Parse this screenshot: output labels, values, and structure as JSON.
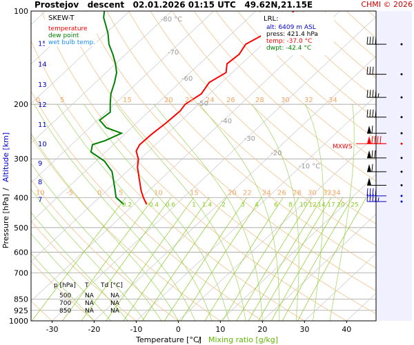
{
  "header": {
    "station": "Prostejov",
    "kind": "descent",
    "datetime": "02.01.2026 01:15 UTC",
    "position": "49.62N,21.15E",
    "copyright": "CHMI © 2026"
  },
  "legend": {
    "title": "SKEW-T",
    "items": [
      {
        "label": "temperature",
        "color": "#ff0000"
      },
      {
        "label": "dew point",
        "color": "#008000"
      },
      {
        "label": "wet bulb temp.",
        "color": "#1e90ff"
      }
    ]
  },
  "lrl": {
    "title": "LRL:",
    "alt": "alt: 6409 m ASL",
    "press": "press: 421.4 hPa",
    "temp": "temp: -37.0 °C",
    "dwpt": "dwpt: -42.4 °C"
  },
  "mxws_label": "MXWS",
  "axes": {
    "xlabel": "Temperature [°C]",
    "xlabel_sep": "/",
    "xlabel_mix": "Mixing ratio [g/kg]",
    "ylabel_pressure": "Pressure [hPa]",
    "ylabel_sep": "/",
    "ylabel_alt": "Altitude [km]",
    "xlim": [
      -35,
      47
    ],
    "ylim": [
      1000,
      100
    ],
    "pressure_ticks": [
      100,
      200,
      300,
      400,
      500,
      600,
      700,
      850,
      925,
      1000
    ],
    "temp_ticks": [
      -30,
      -20,
      -10,
      0,
      10,
      20,
      30,
      40
    ],
    "altitude_ticks": [
      {
        "km": "15",
        "p": 127
      },
      {
        "km": "14",
        "p": 148
      },
      {
        "km": "13",
        "p": 172
      },
      {
        "km": "12",
        "p": 200
      },
      {
        "km": "11",
        "p": 232
      },
      {
        "km": "10",
        "p": 268
      },
      {
        "km": "9",
        "p": 309
      },
      {
        "km": "8",
        "p": 355
      },
      {
        "km": "7",
        "p": 405
      }
    ]
  },
  "surface_table": {
    "headers": [
      "p [hPa]",
      "T",
      "Td [°C]"
    ],
    "rows": [
      [
        "500",
        "NA",
        "NA"
      ],
      [
        "700",
        "NA",
        "NA"
      ],
      [
        "850",
        "NA",
        "NA"
      ]
    ]
  },
  "chart_data": {
    "type": "line",
    "title": "SKEW-T",
    "xlabel": "Temperature [°C] / Mixing ratio [g/kg]",
    "ylabel": "Pressure [hPa] / Altitude [km]",
    "log_scale_y": true,
    "grid": true,
    "series": [
      {
        "name": "temperature",
        "color": "#ff0000",
        "points": [
          [
            421,
            -37.0
          ],
          [
            400,
            -39.5
          ],
          [
            380,
            -41.8
          ],
          [
            350,
            -45.0
          ],
          [
            320,
            -48.5
          ],
          [
            300,
            -50.5
          ],
          [
            283,
            -53.0
          ],
          [
            270,
            -53.8
          ],
          [
            250,
            -53.6
          ],
          [
            230,
            -53.0
          ],
          [
            210,
            -52.7
          ],
          [
            200,
            -53.2
          ],
          [
            185,
            -52.0
          ],
          [
            170,
            -53.0
          ],
          [
            158,
            -51.5
          ],
          [
            148,
            -53.5
          ],
          [
            138,
            -53.0
          ],
          [
            128,
            -54.0
          ],
          [
            118,
            -52.0
          ],
          [
            110,
            -51.5
          ],
          [
            105,
            -50.5
          ],
          [
            100,
            -51.0
          ]
        ]
      },
      {
        "name": "dew point",
        "color": "#008000",
        "points": [
          [
            421,
            -42.4
          ],
          [
            400,
            -46.0
          ],
          [
            370,
            -49.0
          ],
          [
            330,
            -53.5
          ],
          [
            305,
            -58.0
          ],
          [
            285,
            -63.5
          ],
          [
            270,
            -65.0
          ],
          [
            262,
            -63.0
          ],
          [
            248,
            -61.0
          ],
          [
            238,
            -66.0
          ],
          [
            225,
            -69.5
          ],
          [
            212,
            -69.0
          ],
          [
            200,
            -71.0
          ],
          [
            185,
            -73.5
          ],
          [
            170,
            -75.5
          ],
          [
            158,
            -77.5
          ],
          [
            148,
            -80.0
          ],
          [
            138,
            -83.0
          ],
          [
            128,
            -86.5
          ],
          [
            118,
            -89.5
          ],
          [
            110,
            -92.5
          ],
          [
            105,
            -94.5
          ],
          [
            100,
            -96.0
          ]
        ]
      }
    ],
    "isotherm_labels": [
      {
        "label": "-80 °C",
        "t": -80,
        "p": 108
      },
      {
        "label": "-70",
        "t": -70,
        "p": 138
      },
      {
        "label": "-60",
        "t": -60,
        "p": 168
      },
      {
        "label": "-50",
        "t": -50,
        "p": 202
      },
      {
        "label": "-40",
        "t": -40,
        "p": 230
      },
      {
        "label": "-30",
        "t": -30,
        "p": 262
      },
      {
        "label": "-20",
        "t": -20,
        "p": 292
      },
      {
        "label": "-10 °C",
        "t": -10,
        "p": 322
      }
    ],
    "dry_adiabat_labels_200": [
      "0",
      "5",
      "15",
      "20",
      "22",
      "24",
      "26",
      "28",
      "30",
      "32",
      "34"
    ],
    "dry_adiabat_labels_400": [
      "10",
      "-5",
      "0",
      "5",
      "10",
      "15",
      "20",
      "22",
      "24",
      "26",
      "28",
      "30",
      "32",
      "34"
    ],
    "mixing_ratio_labels": [
      "0.2",
      "0.4",
      "0.6",
      "1",
      "1.4",
      "2",
      "3",
      "4",
      "6",
      "8",
      "10",
      "12",
      "14",
      "17",
      "20",
      "25"
    ],
    "winds": [
      {
        "p": 128,
        "dir": 270,
        "speed": 40
      },
      {
        "p": 160,
        "dir": 275,
        "speed": 30
      },
      {
        "p": 190,
        "dir": 280,
        "speed": 45
      },
      {
        "p": 220,
        "dir": 280,
        "speed": 40
      },
      {
        "p": 248,
        "dir": 280,
        "speed": 60
      },
      {
        "p": 268,
        "dir": 280,
        "speed": 90
      },
      {
        "p": 298,
        "dir": 280,
        "speed": 70
      },
      {
        "p": 330,
        "dir": 285,
        "speed": 60
      },
      {
        "p": 365,
        "dir": 285,
        "speed": 50
      },
      {
        "p": 395,
        "dir": 270,
        "speed": 40
      },
      {
        "p": 412,
        "dir": 270,
        "speed": 45
      }
    ]
  }
}
